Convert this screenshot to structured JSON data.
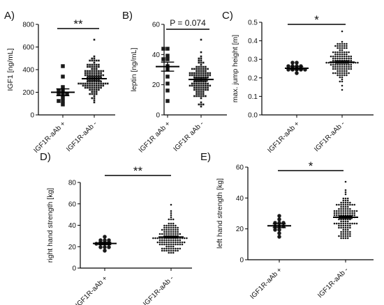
{
  "chart_data": [
    {
      "panel": "A)",
      "type": "scatter",
      "ylabel": "IGF1 [ng/mL]",
      "ylim": [
        0,
        800
      ],
      "yticks": [
        0,
        200,
        400,
        600,
        800
      ],
      "categories": [
        "IGF1R-aAb +",
        "IGF1R-aAb -"
      ],
      "marker": "square",
      "significance": "**",
      "groups": [
        {
          "category": "IGF1R-aAb +",
          "mean": 200,
          "sem": 30,
          "n": 12,
          "values": [
            90,
            110,
            130,
            150,
            170,
            190,
            200,
            210,
            230,
            260,
            340,
            430
          ]
        },
        {
          "category": "IGF1R-aAb -",
          "mean": 320,
          "sem": 18,
          "n": 120,
          "min": 110,
          "max": 660
        }
      ]
    },
    {
      "panel": "B)",
      "type": "scatter",
      "ylabel": "leptin [ng/mL]",
      "ylim": [
        0,
        60
      ],
      "yticks": [
        0,
        20,
        40,
        60
      ],
      "categories": [
        "IGF1R aAb +",
        "IGF1R aAb -"
      ],
      "marker": "square",
      "significance": "P = 0.074",
      "groups": [
        {
          "category": "IGF1R aAb +",
          "mean": 32,
          "sem": 3,
          "n": 11,
          "values": [
            10,
            16,
            21,
            26,
            30,
            32,
            36,
            38,
            40,
            43,
            45
          ]
        },
        {
          "category": "IGF1R aAb -",
          "mean": 23.5,
          "sem": 1,
          "n": 120,
          "min": 6,
          "max": 50
        }
      ]
    },
    {
      "panel": "C)",
      "type": "scatter",
      "ylabel": "max. jump height [m]",
      "ylim": [
        0,
        0.5
      ],
      "yticks": [
        0,
        0.1,
        0.2,
        0.3,
        0.4,
        0.5
      ],
      "ytick_labels": [
        "0.0",
        "0.1",
        "0.2",
        "0.3",
        "0.4",
        "0.5"
      ],
      "categories": [
        "IGF1R-aAb +",
        "IGF1R-aAb -"
      ],
      "marker": "circle",
      "significance": "*",
      "groups": [
        {
          "category": "IGF1R-aAb +",
          "mean": 0.252,
          "sem": 0.008,
          "n": 12,
          "values": [
            0.23,
            0.235,
            0.24,
            0.245,
            0.25,
            0.25,
            0.255,
            0.26,
            0.265,
            0.27,
            0.28,
            0.285
          ]
        },
        {
          "category": "IGF1R-aAb -",
          "mean": 0.285,
          "sem": 0.006,
          "n": 130,
          "min": 0.14,
          "max": 0.45
        }
      ]
    },
    {
      "panel": "D)",
      "type": "scatter",
      "ylabel": "right hand strength [kg]",
      "ylim": [
        0,
        80
      ],
      "yticks": [
        0,
        20,
        40,
        60,
        80
      ],
      "categories": [
        "IGF1R-aAb +",
        "IGF1R-aAb -"
      ],
      "marker": "circle",
      "significance": "**",
      "groups": [
        {
          "category": "IGF1R-aAb +",
          "mean": 23,
          "sem": 1.2,
          "n": 12,
          "values": [
            17,
            19,
            20,
            21,
            22,
            23,
            23,
            24,
            25,
            26,
            27,
            28
          ]
        },
        {
          "category": "IGF1R-aAb -",
          "mean": 29,
          "sem": 0.8,
          "n": 130,
          "min": 14,
          "max": 60
        }
      ]
    },
    {
      "panel": "E)",
      "type": "scatter",
      "ylabel": "left hand strength [kg]",
      "ylim": [
        0,
        60
      ],
      "yticks": [
        0,
        20,
        40,
        60
      ],
      "categories": [
        "IGF1R-aAb +",
        "IGF1R-aAb -"
      ],
      "marker": "circle",
      "significance": "*",
      "groups": [
        {
          "category": "IGF1R-aAb +",
          "mean": 22,
          "sem": 1.2,
          "n": 12,
          "values": [
            16,
            18,
            19,
            20,
            21,
            22,
            22,
            23,
            24,
            25,
            26,
            28
          ]
        },
        {
          "category": "IGF1R-aAb -",
          "mean": 27.5,
          "sem": 0.8,
          "n": 130,
          "min": 14,
          "max": 51
        }
      ]
    }
  ]
}
